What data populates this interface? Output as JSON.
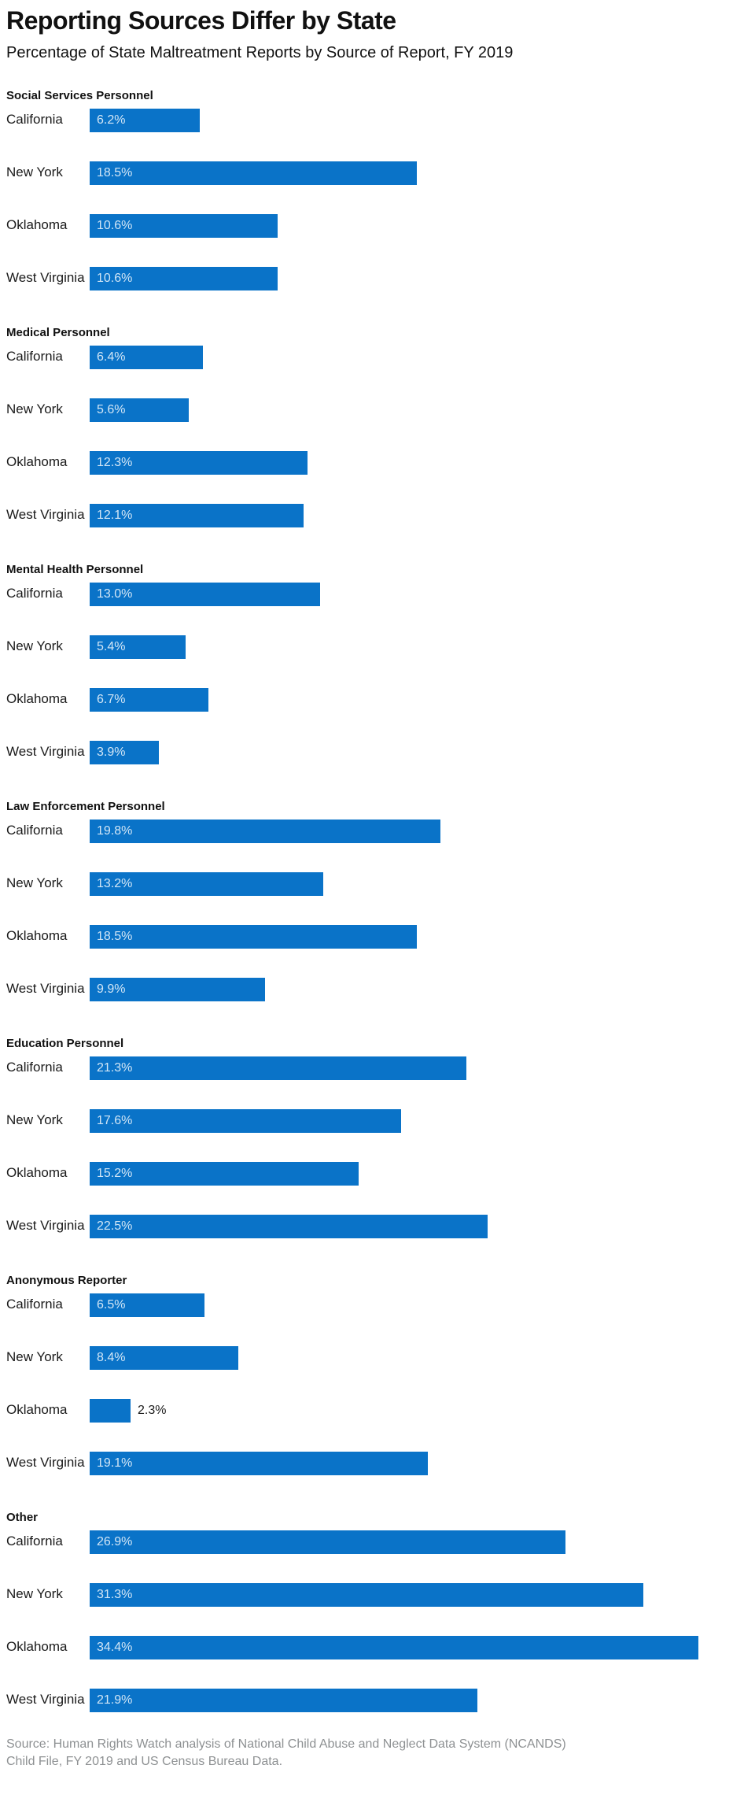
{
  "header": {
    "title": "Reporting Sources Differ by State",
    "subtitle": "Percentage of State Maltreatment Reports by Source of Report, FY 2019"
  },
  "source": {
    "line1": "Source: Human Rights Watch analysis of National Child Abuse and Neglect Data System (NCANDS)",
    "line2": "Child File, FY 2019 and US Census Bureau Data."
  },
  "colors": {
    "bar": "#0a73c8",
    "bar_label_inside": "#d2e6f6",
    "bar_label_outside": "#1a1a1a",
    "text": "#111111",
    "source_text": "#8e9193"
  },
  "chart_data": {
    "type": "bar",
    "orientation": "horizontal",
    "title": "Reporting Sources Differ by State",
    "subtitle": "Percentage of State Maltreatment Reports by Source of Report, FY 2019",
    "unit": "%",
    "xlim": [
      0,
      37
    ],
    "grid": false,
    "legend": "none",
    "categories": [
      "California",
      "New York",
      "Oklahoma",
      "West Virginia"
    ],
    "groups": [
      {
        "label": "Social Services Personnel",
        "bars": [
          {
            "state": "California",
            "value": 6.2,
            "display": "6.2%"
          },
          {
            "state": "New York",
            "value": 18.5,
            "display": "18.5%"
          },
          {
            "state": "Oklahoma",
            "value": 10.6,
            "display": "10.6%"
          },
          {
            "state": "West Virginia",
            "value": 10.6,
            "display": "10.6%"
          }
        ]
      },
      {
        "label": "Medical Personnel",
        "bars": [
          {
            "state": "California",
            "value": 6.4,
            "display": "6.4%"
          },
          {
            "state": "New York",
            "value": 5.6,
            "display": "5.6%"
          },
          {
            "state": "Oklahoma",
            "value": 12.3,
            "display": "12.3%"
          },
          {
            "state": "West Virginia",
            "value": 12.1,
            "display": "12.1%"
          }
        ]
      },
      {
        "label": "Mental Health Personnel",
        "bars": [
          {
            "state": "California",
            "value": 13.0,
            "display": "13.0%"
          },
          {
            "state": "New York",
            "value": 5.4,
            "display": "5.4%"
          },
          {
            "state": "Oklahoma",
            "value": 6.7,
            "display": "6.7%"
          },
          {
            "state": "West Virginia",
            "value": 3.9,
            "display": "3.9%"
          }
        ]
      },
      {
        "label": "Law Enforcement Personnel",
        "bars": [
          {
            "state": "California",
            "value": 19.8,
            "display": "19.8%"
          },
          {
            "state": "New York",
            "value": 13.2,
            "display": "13.2%"
          },
          {
            "state": "Oklahoma",
            "value": 18.5,
            "display": "18.5%"
          },
          {
            "state": "West Virginia",
            "value": 9.9,
            "display": "9.9%"
          }
        ]
      },
      {
        "label": "Education Personnel",
        "bars": [
          {
            "state": "California",
            "value": 21.3,
            "display": "21.3%"
          },
          {
            "state": "New York",
            "value": 17.6,
            "display": "17.6%"
          },
          {
            "state": "Oklahoma",
            "value": 15.2,
            "display": "15.2%"
          },
          {
            "state": "West Virginia",
            "value": 22.5,
            "display": "22.5%"
          }
        ]
      },
      {
        "label": "Anonymous Reporter",
        "bars": [
          {
            "state": "California",
            "value": 6.5,
            "display": "6.5%"
          },
          {
            "state": "New York",
            "value": 8.4,
            "display": "8.4%"
          },
          {
            "state": "Oklahoma",
            "value": 2.3,
            "display": "2.3%"
          },
          {
            "state": "West Virginia",
            "value": 19.1,
            "display": "19.1%"
          }
        ]
      },
      {
        "label": "Other",
        "bars": [
          {
            "state": "California",
            "value": 26.9,
            "display": "26.9%"
          },
          {
            "state": "New York",
            "value": 31.3,
            "display": "31.3%"
          },
          {
            "state": "Oklahoma",
            "value": 34.4,
            "display": "34.4%"
          },
          {
            "state": "West Virginia",
            "value": 21.9,
            "display": "21.9%"
          }
        ]
      }
    ]
  }
}
